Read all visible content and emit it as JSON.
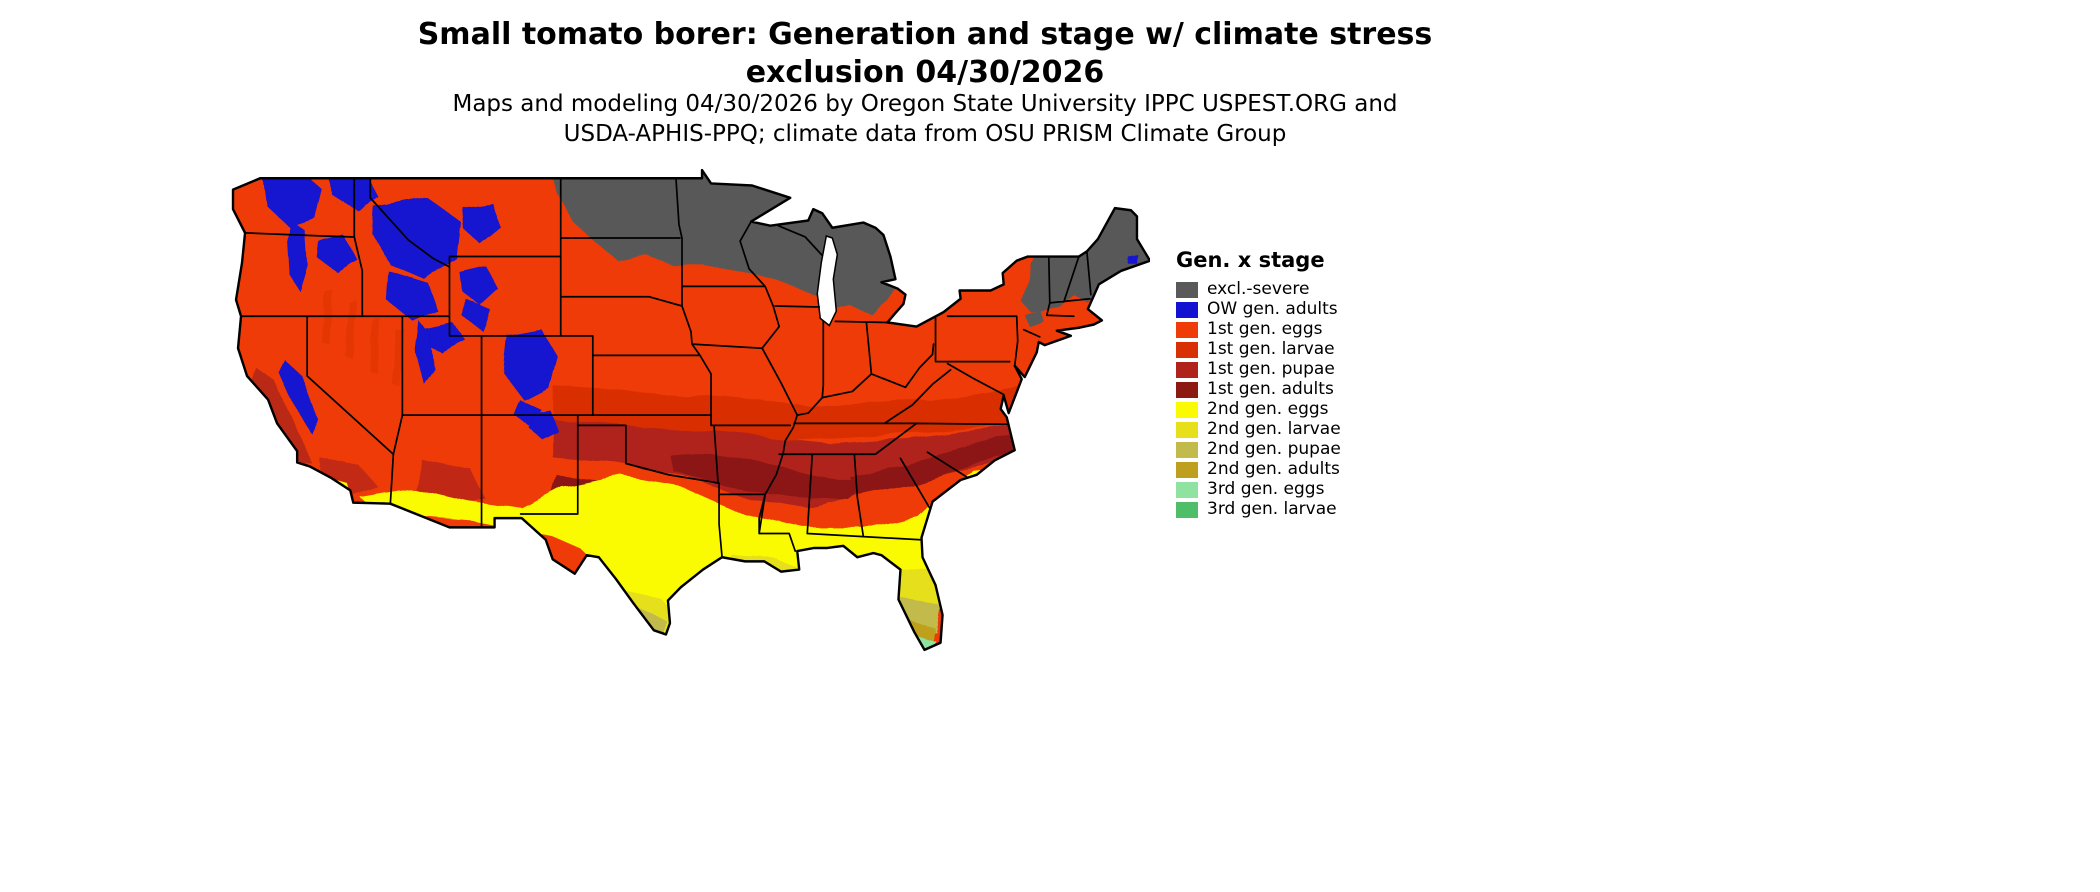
{
  "title": {
    "line1": "Small tomato borer: Generation and stage w/ climate stress",
    "line2": "exclusion 04/30/2026"
  },
  "subtitle": {
    "line1": "Maps and modeling 04/30/2026 by Oregon State University IPPC USPEST.ORG and",
    "line2": "USDA-APHIS-PPQ; climate data from OSU PRISM Climate Group"
  },
  "map": {
    "description": "CONUS raster map of small tomato borer generation and life stage with climate stress exclusion",
    "background_color": "#ffffff",
    "border_color": "#000000"
  },
  "legend": {
    "title": "Gen. x stage",
    "entries": [
      {
        "key": "excl",
        "label": "excl.-severe",
        "color": "#595959"
      },
      {
        "key": "ow",
        "label": "OW gen. adults",
        "color": "#1212D0"
      },
      {
        "key": "e1",
        "label": "1st gen. eggs",
        "color": "#EE3B07"
      },
      {
        "key": "l1",
        "label": "1st gen. larvae",
        "color": "#D92F05"
      },
      {
        "key": "p1",
        "label": "1st gen. pupae",
        "color": "#B0231A"
      },
      {
        "key": "a1",
        "label": "1st gen. adults",
        "color": "#8C1912"
      },
      {
        "key": "e2",
        "label": "2nd gen. eggs",
        "color": "#FAFA00"
      },
      {
        "key": "l2",
        "label": "2nd gen. larvae",
        "color": "#E6DF1A"
      },
      {
        "key": "p2",
        "label": "2nd gen. pupae",
        "color": "#C2BB4C"
      },
      {
        "key": "a2",
        "label": "2nd gen. adults",
        "color": "#BFA01E"
      },
      {
        "key": "e3",
        "label": "3rd gen. eggs",
        "color": "#90E2A0"
      },
      {
        "key": "l3",
        "label": "3rd gen. larvae",
        "color": "#4FBE68"
      }
    ]
  }
}
